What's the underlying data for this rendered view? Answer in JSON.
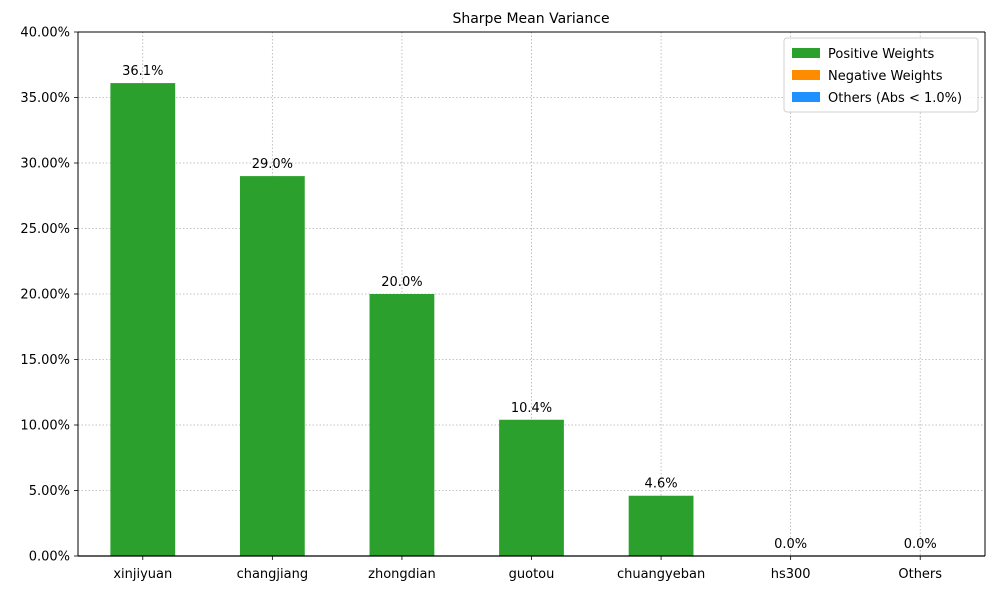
{
  "chart_data": {
    "type": "bar",
    "title": "Sharpe Mean Variance",
    "xlabel": "",
    "ylabel": "",
    "categories": [
      "xinjiyuan",
      "changjiang",
      "zhongdian",
      "guotou",
      "chuangyeban",
      "hs300",
      "Others"
    ],
    "values": [
      36.1,
      29.0,
      20.0,
      10.4,
      4.6,
      0.0,
      0.0
    ],
    "value_labels": [
      "36.1%",
      "29.0%",
      "20.0%",
      "10.4%",
      "4.6%",
      "0.0%",
      "0.0%"
    ],
    "ylim": [
      0,
      40
    ],
    "yticks": [
      0,
      5,
      10,
      15,
      20,
      25,
      30,
      35,
      40
    ],
    "ytick_labels": [
      "0.00%",
      "5.00%",
      "10.00%",
      "15.00%",
      "20.00%",
      "25.00%",
      "30.00%",
      "35.00%",
      "40.00%"
    ],
    "grid": true,
    "legend_position": "top-right",
    "legend": [
      {
        "name": "Positive Weights",
        "color": "#2ca02c"
      },
      {
        "name": "Negative Weights",
        "color": "#ff8c00"
      },
      {
        "name": "Others (Abs < 1.0%)",
        "color": "#1e90ff"
      }
    ],
    "bar_color": "#2ca02c"
  }
}
